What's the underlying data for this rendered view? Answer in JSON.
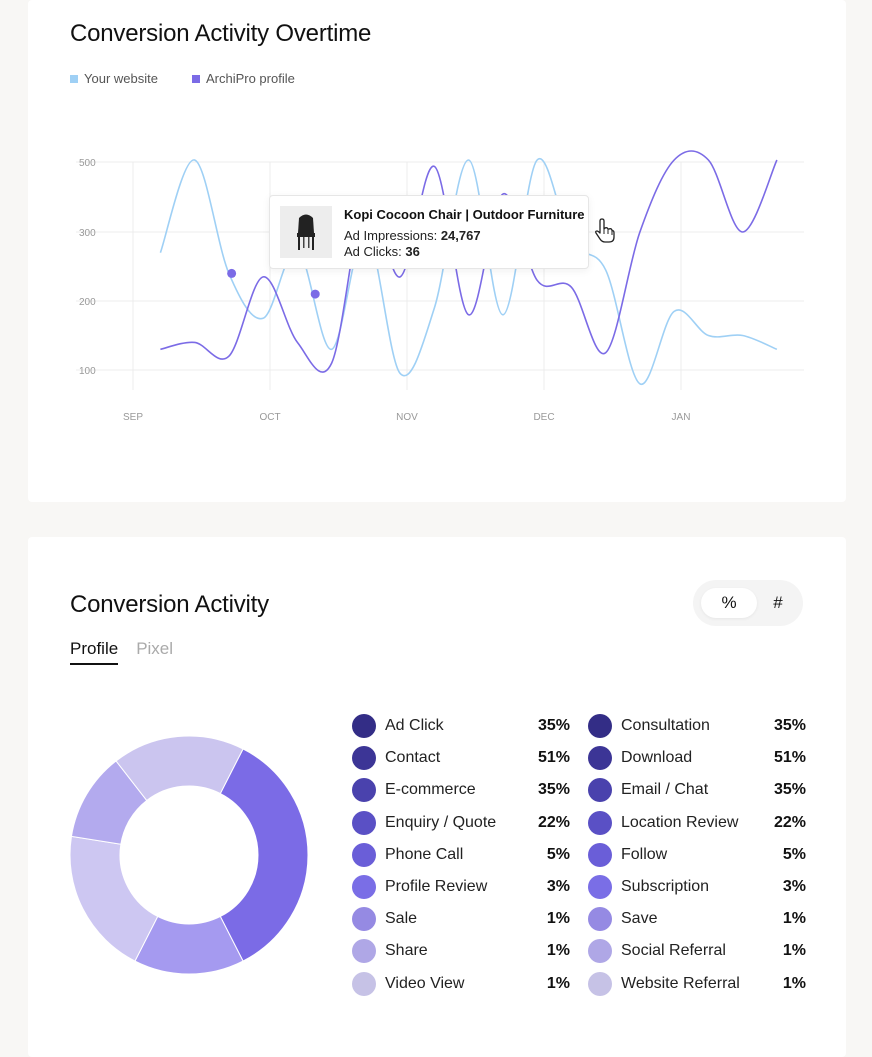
{
  "overtime": {
    "title": "Conversion Activity Overtime",
    "legend": [
      {
        "label": "Your website",
        "color": "#9fd0f5"
      },
      {
        "label": "ArchiPro profile",
        "color": "#7b6be6"
      }
    ],
    "tooltip": {
      "product": "Kopi Cocoon Chair | Outdoor Furniture",
      "impressions_label": "Ad Impressions:",
      "impressions_value": "24,767",
      "clicks_label": "Ad Clicks:",
      "clicks_value": "36"
    }
  },
  "chart_data": {
    "type": "line",
    "xlabel": "",
    "ylabel": "",
    "x_ticks": [
      "SEP",
      "OCT",
      "NOV",
      "DEC",
      "JAN"
    ],
    "y_ticks": [
      100,
      200,
      300,
      500
    ],
    "grid": true,
    "legend_position": "top-left",
    "x": [
      0.2,
      0.45,
      0.7,
      0.95,
      1.2,
      1.45,
      1.7,
      1.95,
      2.2,
      2.45,
      2.7,
      2.95,
      3.2,
      3.45,
      3.7,
      3.95,
      4.2,
      4.45,
      4.7
    ],
    "series": [
      {
        "name": "Your website",
        "color": "#9fd0f5",
        "values": [
          270,
          490,
          240,
          175,
          275,
          130,
          300,
          95,
          190,
          470,
          180,
          430,
          285,
          245,
          80,
          185,
          150,
          150,
          130
        ]
      },
      {
        "name": "ArchiPro profile",
        "color": "#7b6be6",
        "values": [
          130,
          140,
          120,
          235,
          140,
          110,
          350,
          235,
          395,
          180,
          355,
          230,
          220,
          125,
          300,
          470,
          495,
          300,
          460
        ]
      }
    ],
    "highlighted_points": [
      {
        "series": "ArchiPro profile",
        "x": 0.72,
        "y": 240
      },
      {
        "series": "ArchiPro profile",
        "x": 1.33,
        "y": 210
      }
    ]
  },
  "activity": {
    "title": "Conversion Activity",
    "tabs": [
      "Profile",
      "Pixel"
    ],
    "toggle": {
      "percent": "%",
      "count": "#"
    },
    "donut": [
      {
        "label": "segment-1",
        "value": 35,
        "color": "#7b6be6"
      },
      {
        "label": "segment-2",
        "value": 15,
        "color": "#a59af0"
      },
      {
        "label": "segment-3",
        "value": 20,
        "color": "#cdc7f2"
      },
      {
        "label": "segment-4",
        "value": 12,
        "color": "#b3aaee"
      },
      {
        "label": "segment-5",
        "value": 18,
        "color": "#cbc5ef"
      }
    ],
    "left": [
      {
        "label": "Ad Click",
        "value": "35%",
        "color": "#332d86"
      },
      {
        "label": "Contact",
        "value": "51%",
        "color": "#3c3596"
      },
      {
        "label": "E-commerce",
        "value": "35%",
        "color": "#4a42ad"
      },
      {
        "label": "Enquiry / Quote",
        "value": "22%",
        "color": "#5a50c5"
      },
      {
        "label": "Phone Call",
        "value": "5%",
        "color": "#6a5ed8"
      },
      {
        "label": "Profile Review",
        "value": "3%",
        "color": "#7a6ee6"
      },
      {
        "label": "Sale",
        "value": "1%",
        "color": "#958ae3"
      },
      {
        "label": "Share",
        "value": "1%",
        "color": "#afa7e6"
      },
      {
        "label": "Video View",
        "value": "1%",
        "color": "#c6c2e6"
      }
    ],
    "right": [
      {
        "label": "Consultation",
        "value": "35%",
        "color": "#332d86"
      },
      {
        "label": "Download",
        "value": "51%",
        "color": "#3c3596"
      },
      {
        "label": "Email / Chat",
        "value": "35%",
        "color": "#4a42ad"
      },
      {
        "label": "Location Review",
        "value": "22%",
        "color": "#5a50c5"
      },
      {
        "label": "Follow",
        "value": "5%",
        "color": "#6a5ed8"
      },
      {
        "label": "Subscription",
        "value": "3%",
        "color": "#7a6ee6"
      },
      {
        "label": "Save",
        "value": "1%",
        "color": "#958ae3"
      },
      {
        "label": "Social Referral",
        "value": "1%",
        "color": "#afa7e6"
      },
      {
        "label": "Website Referral",
        "value": "1%",
        "color": "#c6c2e6"
      }
    ]
  }
}
